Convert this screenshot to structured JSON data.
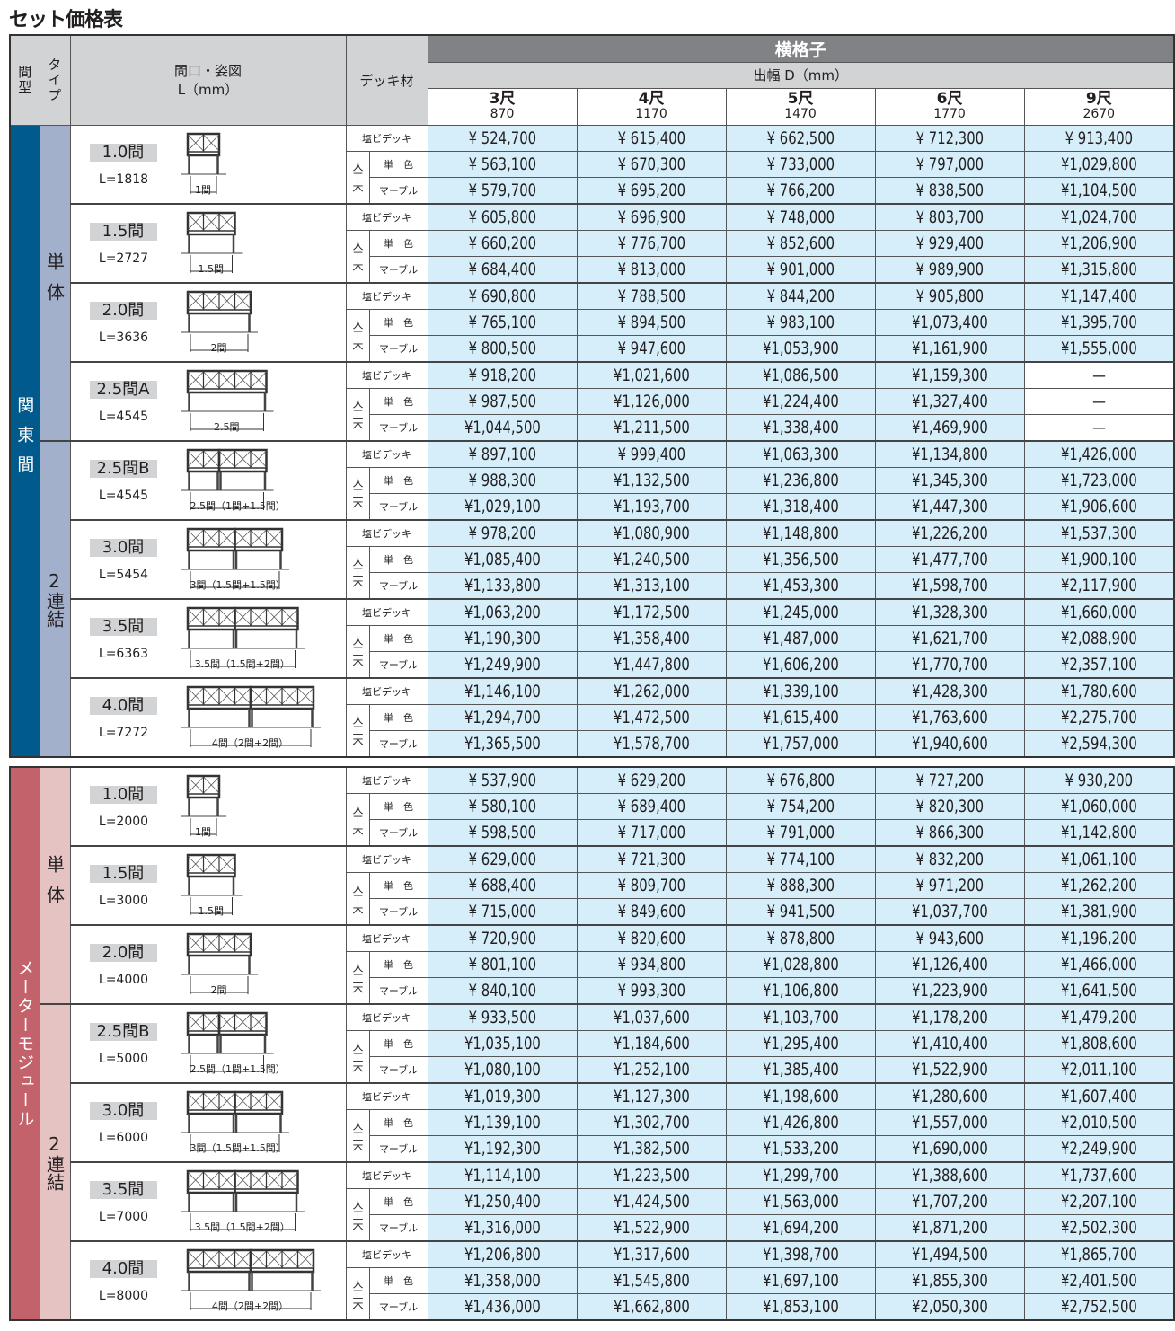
{
  "title": "セット価格表",
  "header": {
    "col_kanagata": "間型",
    "col_type": "タイプ",
    "col_frontage": "間口・姿図",
    "col_frontage_unit": "L（mm）",
    "col_deck": "デッキ材",
    "product": "横格子",
    "depth_label": "出幅 D（mm）",
    "depths": [
      {
        "shaku": "3尺",
        "mm": "870"
      },
      {
        "shaku": "4尺",
        "mm": "1170"
      },
      {
        "shaku": "5尺",
        "mm": "1470"
      },
      {
        "shaku": "6尺",
        "mm": "1770"
      },
      {
        "shaku": "9尺",
        "mm": "2670"
      }
    ]
  },
  "deck_labels": {
    "pvc": "塩ビデッキ",
    "artificial": "人工木",
    "solid": "単　色",
    "marble": "マーブル"
  },
  "colors": {
    "price_bg": "#d5eef9",
    "header_dark": "#808285",
    "header_light": "#d1d3d4"
  },
  "sections": [
    {
      "name": "関東間",
      "color": "#005a8c",
      "type_color": "#a3b0cc",
      "types": [
        {
          "label": "単体",
          "groups": [
            {
              "size": "1.0間",
              "length": "L=1818",
              "dim": "1間",
              "prices": [
                [
                  "¥ 524,700",
                  "¥ 615,400",
                  "¥ 662,500",
                  "¥ 712,300",
                  "¥ 913,400"
                ],
                [
                  "¥ 563,100",
                  "¥ 670,300",
                  "¥ 733,000",
                  "¥ 797,000",
                  "¥1,029,800"
                ],
                [
                  "¥ 579,700",
                  "¥ 695,200",
                  "¥ 766,200",
                  "¥ 838,500",
                  "¥1,104,500"
                ]
              ]
            },
            {
              "size": "1.5間",
              "length": "L=2727",
              "dim": "1.5間",
              "prices": [
                [
                  "¥ 605,800",
                  "¥ 696,900",
                  "¥ 748,000",
                  "¥ 803,700",
                  "¥1,024,700"
                ],
                [
                  "¥ 660,200",
                  "¥ 776,700",
                  "¥ 852,600",
                  "¥ 929,400",
                  "¥1,206,900"
                ],
                [
                  "¥ 684,400",
                  "¥ 813,000",
                  "¥ 901,000",
                  "¥ 989,900",
                  "¥1,315,800"
                ]
              ]
            },
            {
              "size": "2.0間",
              "length": "L=3636",
              "dim": "2間",
              "prices": [
                [
                  "¥ 690,800",
                  "¥ 788,500",
                  "¥ 844,200",
                  "¥ 905,800",
                  "¥1,147,400"
                ],
                [
                  "¥ 765,100",
                  "¥ 894,500",
                  "¥ 983,100",
                  "¥1,073,400",
                  "¥1,395,700"
                ],
                [
                  "¥ 800,500",
                  "¥ 947,600",
                  "¥1,053,900",
                  "¥1,161,900",
                  "¥1,555,000"
                ]
              ]
            },
            {
              "size": "2.5間A",
              "length": "L=4545",
              "dim": "2.5間",
              "prices": [
                [
                  "¥ 918,200",
                  "¥1,021,600",
                  "¥1,086,500",
                  "¥1,159,300",
                  "—"
                ],
                [
                  "¥ 987,500",
                  "¥1,126,000",
                  "¥1,224,400",
                  "¥1,327,400",
                  "—"
                ],
                [
                  "¥1,044,500",
                  "¥1,211,500",
                  "¥1,338,400",
                  "¥1,469,900",
                  "—"
                ]
              ]
            }
          ]
        },
        {
          "label": "2連結",
          "groups": [
            {
              "size": "2.5間B",
              "length": "L=4545",
              "dim": "2.5間（1間+1.5間）",
              "prices": [
                [
                  "¥ 897,100",
                  "¥ 999,400",
                  "¥1,063,300",
                  "¥1,134,800",
                  "¥1,426,000"
                ],
                [
                  "¥ 988,300",
                  "¥1,132,500",
                  "¥1,236,800",
                  "¥1,345,300",
                  "¥1,723,000"
                ],
                [
                  "¥1,029,100",
                  "¥1,193,700",
                  "¥1,318,400",
                  "¥1,447,300",
                  "¥1,906,600"
                ]
              ]
            },
            {
              "size": "3.0間",
              "length": "L=5454",
              "dim": "3間（1.5間+1.5間）",
              "prices": [
                [
                  "¥ 978,200",
                  "¥1,080,900",
                  "¥1,148,800",
                  "¥1,226,200",
                  "¥1,537,300"
                ],
                [
                  "¥1,085,400",
                  "¥1,240,500",
                  "¥1,356,500",
                  "¥1,477,700",
                  "¥1,900,100"
                ],
                [
                  "¥1,133,800",
                  "¥1,313,100",
                  "¥1,453,300",
                  "¥1,598,700",
                  "¥2,117,900"
                ]
              ]
            },
            {
              "size": "3.5間",
              "length": "L=6363",
              "dim": "3.5間（1.5間+2間）",
              "prices": [
                [
                  "¥1,063,200",
                  "¥1,172,500",
                  "¥1,245,000",
                  "¥1,328,300",
                  "¥1,660,000"
                ],
                [
                  "¥1,190,300",
                  "¥1,358,400",
                  "¥1,487,000",
                  "¥1,621,700",
                  "¥2,088,900"
                ],
                [
                  "¥1,249,900",
                  "¥1,447,800",
                  "¥1,606,200",
                  "¥1,770,700",
                  "¥2,357,100"
                ]
              ]
            },
            {
              "size": "4.0間",
              "length": "L=7272",
              "dim": "4間（2間+2間）",
              "prices": [
                [
                  "¥1,146,100",
                  "¥1,262,000",
                  "¥1,339,100",
                  "¥1,428,300",
                  "¥1,780,600"
                ],
                [
                  "¥1,294,700",
                  "¥1,472,500",
                  "¥1,615,400",
                  "¥1,763,600",
                  "¥2,275,700"
                ],
                [
                  "¥1,365,500",
                  "¥1,578,700",
                  "¥1,757,000",
                  "¥1,940,600",
                  "¥2,594,300"
                ]
              ]
            }
          ]
        }
      ]
    },
    {
      "name": "メーターモジュール",
      "color": "#c3626a",
      "type_color": "#e6c3c3",
      "types": [
        {
          "label": "単体",
          "groups": [
            {
              "size": "1.0間",
              "length": "L=2000",
              "dim": "1間",
              "prices": [
                [
                  "¥ 537,900",
                  "¥ 629,200",
                  "¥ 676,800",
                  "¥ 727,200",
                  "¥ 930,200"
                ],
                [
                  "¥ 580,100",
                  "¥ 689,400",
                  "¥ 754,200",
                  "¥ 820,300",
                  "¥1,060,000"
                ],
                [
                  "¥ 598,500",
                  "¥ 717,000",
                  "¥ 791,000",
                  "¥ 866,300",
                  "¥1,142,800"
                ]
              ]
            },
            {
              "size": "1.5間",
              "length": "L=3000",
              "dim": "1.5間",
              "prices": [
                [
                  "¥ 629,000",
                  "¥ 721,300",
                  "¥ 774,100",
                  "¥ 832,200",
                  "¥1,061,100"
                ],
                [
                  "¥ 688,400",
                  "¥ 809,700",
                  "¥ 888,300",
                  "¥ 971,200",
                  "¥1,262,200"
                ],
                [
                  "¥ 715,000",
                  "¥ 849,600",
                  "¥ 941,500",
                  "¥1,037,700",
                  "¥1,381,900"
                ]
              ]
            },
            {
              "size": "2.0間",
              "length": "L=4000",
              "dim": "2間",
              "prices": [
                [
                  "¥ 720,900",
                  "¥ 820,600",
                  "¥ 878,800",
                  "¥ 943,600",
                  "¥1,196,200"
                ],
                [
                  "¥ 801,100",
                  "¥ 934,800",
                  "¥1,028,800",
                  "¥1,126,400",
                  "¥1,466,000"
                ],
                [
                  "¥ 840,100",
                  "¥ 993,300",
                  "¥1,106,800",
                  "¥1,223,900",
                  "¥1,641,500"
                ]
              ]
            }
          ]
        },
        {
          "label": "2連結",
          "groups": [
            {
              "size": "2.5間B",
              "length": "L=5000",
              "dim": "2.5間（1間+1.5間）",
              "prices": [
                [
                  "¥ 933,500",
                  "¥1,037,600",
                  "¥1,103,700",
                  "¥1,178,200",
                  "¥1,479,200"
                ],
                [
                  "¥1,035,100",
                  "¥1,184,600",
                  "¥1,295,400",
                  "¥1,410,400",
                  "¥1,808,600"
                ],
                [
                  "¥1,080,100",
                  "¥1,252,100",
                  "¥1,385,400",
                  "¥1,522,900",
                  "¥2,011,100"
                ]
              ]
            },
            {
              "size": "3.0間",
              "length": "L=6000",
              "dim": "3間（1.5間+1.5間）",
              "prices": [
                [
                  "¥1,019,300",
                  "¥1,127,300",
                  "¥1,198,600",
                  "¥1,280,600",
                  "¥1,607,400"
                ],
                [
                  "¥1,139,100",
                  "¥1,302,700",
                  "¥1,426,800",
                  "¥1,557,000",
                  "¥2,010,500"
                ],
                [
                  "¥1,192,300",
                  "¥1,382,500",
                  "¥1,533,200",
                  "¥1,690,000",
                  "¥2,249,900"
                ]
              ]
            },
            {
              "size": "3.5間",
              "length": "L=7000",
              "dim": "3.5間（1.5間+2間）",
              "prices": [
                [
                  "¥1,114,100",
                  "¥1,223,500",
                  "¥1,299,700",
                  "¥1,388,600",
                  "¥1,737,600"
                ],
                [
                  "¥1,250,400",
                  "¥1,424,500",
                  "¥1,563,000",
                  "¥1,707,200",
                  "¥2,207,100"
                ],
                [
                  "¥1,316,000",
                  "¥1,522,900",
                  "¥1,694,200",
                  "¥1,871,200",
                  "¥2,502,300"
                ]
              ]
            },
            {
              "size": "4.0間",
              "length": "L=8000",
              "dim": "4間（2間+2間）",
              "prices": [
                [
                  "¥1,206,800",
                  "¥1,317,600",
                  "¥1,398,700",
                  "¥1,494,500",
                  "¥1,865,700"
                ],
                [
                  "¥1,358,000",
                  "¥1,545,800",
                  "¥1,697,100",
                  "¥1,855,300",
                  "¥2,401,500"
                ],
                [
                  "¥1,436,000",
                  "¥1,662,800",
                  "¥1,853,100",
                  "¥2,050,300",
                  "¥2,752,500"
                ]
              ]
            }
          ]
        }
      ]
    }
  ]
}
